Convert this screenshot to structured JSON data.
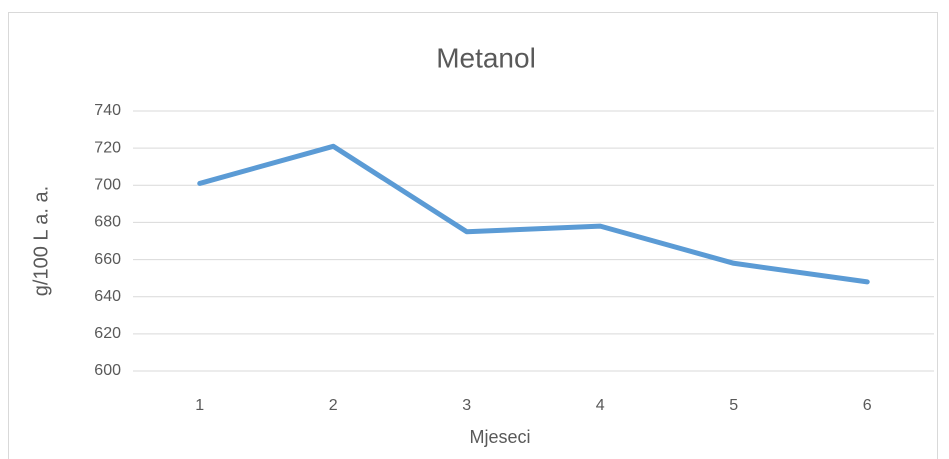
{
  "chart_data": {
    "type": "line",
    "title": "Metanol",
    "x_label": "Mjeseci",
    "y_label": "g/100 L a. a.",
    "categories": [
      "1",
      "2",
      "3",
      "4",
      "5",
      "6"
    ],
    "series": [
      {
        "name": "Metanol",
        "color": "#5b9bd5",
        "values": [
          701,
          721,
          675,
          678,
          658,
          648
        ]
      }
    ],
    "ylim": [
      600,
      740
    ],
    "yticks": [
      600,
      620,
      640,
      660,
      680,
      700,
      720,
      740
    ],
    "grid": true
  }
}
